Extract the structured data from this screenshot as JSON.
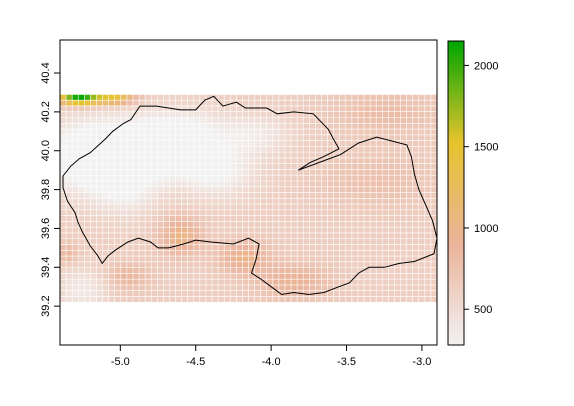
{
  "map": {
    "type": "raster-heatmap",
    "x_axis": {
      "range": [
        -5.4,
        -2.9
      ],
      "ticks": [
        {
          "value": -5.0,
          "label": "-5.0"
        },
        {
          "value": -4.5,
          "label": "-4.5"
        },
        {
          "value": -4.0,
          "label": "-4.0"
        },
        {
          "value": -3.5,
          "label": "-3.5"
        },
        {
          "value": -3.0,
          "label": "-3.0"
        }
      ]
    },
    "y_axis": {
      "range": [
        39.0,
        40.57
      ],
      "ticks": [
        {
          "value": 39.2,
          "label": "39.2"
        },
        {
          "value": 39.4,
          "label": "39.4"
        },
        {
          "value": 39.6,
          "label": "39.6"
        },
        {
          "value": 39.8,
          "label": "39.8"
        },
        {
          "value": 40.0,
          "label": "40.0"
        },
        {
          "value": 40.2,
          "label": "40.2"
        },
        {
          "value": 40.4,
          "label": "40.4"
        }
      ]
    },
    "raster_extent": {
      "x": [
        -5.4,
        -2.9
      ],
      "y": [
        39.22,
        40.29
      ]
    },
    "legend": {
      "position": "right",
      "range": [
        280,
        2150
      ],
      "ticks": [
        {
          "value": 500,
          "label": "500"
        },
        {
          "value": 1000,
          "label": "1000"
        },
        {
          "value": 1500,
          "label": "1500"
        },
        {
          "value": 2000,
          "label": "2000"
        }
      ],
      "colors": [
        "#f2f2f2",
        "#eab39b",
        "#e8c32e",
        "#00a600"
      ]
    },
    "grid_lines": true,
    "boundary_polygon": [
      [
        -5.38,
        39.87
      ],
      [
        -5.33,
        39.92
      ],
      [
        -5.27,
        39.96
      ],
      [
        -5.2,
        39.99
      ],
      [
        -5.1,
        40.06
      ],
      [
        -5.05,
        40.1
      ],
      [
        -4.98,
        40.14
      ],
      [
        -4.93,
        40.16
      ],
      [
        -4.87,
        40.23
      ],
      [
        -4.76,
        40.23
      ],
      [
        -4.6,
        40.21
      ],
      [
        -4.5,
        40.21
      ],
      [
        -4.44,
        40.26
      ],
      [
        -4.38,
        40.28
      ],
      [
        -4.32,
        40.23
      ],
      [
        -4.23,
        40.25
      ],
      [
        -4.17,
        40.22
      ],
      [
        -4.03,
        40.22
      ],
      [
        -3.96,
        40.19
      ],
      [
        -3.85,
        40.2
      ],
      [
        -3.72,
        40.19
      ],
      [
        -3.62,
        40.11
      ],
      [
        -3.58,
        40.05
      ],
      [
        -3.55,
        40.01
      ],
      [
        -3.65,
        39.97
      ],
      [
        -3.74,
        39.94
      ],
      [
        -3.82,
        39.9
      ],
      [
        -3.68,
        39.94
      ],
      [
        -3.54,
        39.98
      ],
      [
        -3.42,
        40.04
      ],
      [
        -3.3,
        40.07
      ],
      [
        -3.2,
        40.05
      ],
      [
        -3.1,
        40.03
      ],
      [
        -3.07,
        39.97
      ],
      [
        -3.05,
        39.88
      ],
      [
        -3.02,
        39.8
      ],
      [
        -2.98,
        39.73
      ],
      [
        -2.93,
        39.64
      ],
      [
        -2.9,
        39.55
      ],
      [
        -2.92,
        39.47
      ],
      [
        -3.05,
        39.43
      ],
      [
        -3.15,
        39.42
      ],
      [
        -3.25,
        39.4
      ],
      [
        -3.35,
        39.4
      ],
      [
        -3.42,
        39.37
      ],
      [
        -3.48,
        39.32
      ],
      [
        -3.55,
        39.3
      ],
      [
        -3.65,
        39.27
      ],
      [
        -3.75,
        39.26
      ],
      [
        -3.85,
        39.27
      ],
      [
        -3.93,
        39.26
      ],
      [
        -4.0,
        39.3
      ],
      [
        -4.07,
        39.34
      ],
      [
        -4.13,
        39.37
      ],
      [
        -4.1,
        39.44
      ],
      [
        -4.08,
        39.52
      ],
      [
        -4.15,
        39.55
      ],
      [
        -4.25,
        39.52
      ],
      [
        -4.4,
        39.53
      ],
      [
        -4.5,
        39.54
      ],
      [
        -4.58,
        39.52
      ],
      [
        -4.68,
        39.5
      ],
      [
        -4.75,
        39.5
      ],
      [
        -4.8,
        39.53
      ],
      [
        -4.88,
        39.55
      ],
      [
        -4.95,
        39.53
      ],
      [
        -5.03,
        39.49
      ],
      [
        -5.08,
        39.46
      ],
      [
        -5.12,
        39.42
      ],
      [
        -5.15,
        39.46
      ],
      [
        -5.2,
        39.51
      ],
      [
        -5.25,
        39.58
      ],
      [
        -5.28,
        39.63
      ],
      [
        -5.3,
        39.68
      ],
      [
        -5.35,
        39.74
      ],
      [
        -5.38,
        39.81
      ]
    ],
    "features": [
      {
        "value": 280,
        "x": -5.28,
        "y": 39.98,
        "sx": 0.2,
        "sy": 0.12
      },
      {
        "value": 290,
        "x": -5.1,
        "y": 39.95,
        "sx": 0.18,
        "sy": 0.14
      },
      {
        "value": 310,
        "x": -4.85,
        "y": 39.99,
        "sx": 0.2,
        "sy": 0.11
      },
      {
        "value": 320,
        "x": -4.55,
        "y": 39.98,
        "sx": 0.22,
        "sy": 0.09
      },
      {
        "value": 350,
        "x": -4.35,
        "y": 39.88,
        "sx": 0.18,
        "sy": 0.09
      },
      {
        "value": 360,
        "x": -4.6,
        "y": 40.13,
        "sx": 0.22,
        "sy": 0.07
      },
      {
        "value": 380,
        "x": -4.1,
        "y": 40.08,
        "sx": 0.16,
        "sy": 0.07
      },
      {
        "value": 370,
        "x": -5.25,
        "y": 39.28,
        "sx": 0.12,
        "sy": 0.08
      },
      {
        "value": 420,
        "x": -4.95,
        "y": 39.8,
        "sx": 0.14,
        "sy": 0.1
      },
      {
        "value": 2150,
        "x": -5.28,
        "y": 40.27,
        "sx": 0.09,
        "sy": 0.025
      },
      {
        "value": 1500,
        "x": -5.05,
        "y": 40.27,
        "sx": 0.1,
        "sy": 0.025
      },
      {
        "value": 1050,
        "x": -4.6,
        "y": 39.56,
        "sx": 0.1,
        "sy": 0.07
      },
      {
        "value": 1000,
        "x": -4.18,
        "y": 39.45,
        "sx": 0.12,
        "sy": 0.06
      },
      {
        "value": 950,
        "x": -3.85,
        "y": 39.33,
        "sx": 0.16,
        "sy": 0.06
      },
      {
        "value": 900,
        "x": -4.95,
        "y": 39.35,
        "sx": 0.1,
        "sy": 0.05
      },
      {
        "value": 880,
        "x": -5.35,
        "y": 39.47,
        "sx": 0.05,
        "sy": 0.04
      },
      {
        "value": 820,
        "x": -3.25,
        "y": 40.2,
        "sx": 0.22,
        "sy": 0.08
      },
      {
        "value": 780,
        "x": -3.3,
        "y": 39.85,
        "sx": 0.25,
        "sy": 0.1
      }
    ],
    "base_value": 630
  }
}
